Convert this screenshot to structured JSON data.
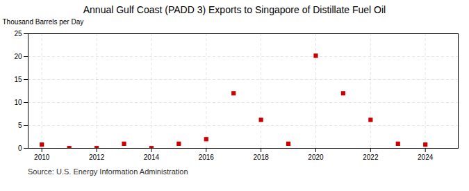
{
  "chart_data": {
    "type": "scatter",
    "title": "Annual Gulf Coast (PADD 3) Exports to Singapore of Distillate Fuel Oil",
    "ylabel": "Thousand Barrels per Day",
    "source": "Source: U.S. Energy Information Administration",
    "x": [
      2010,
      2011,
      2012,
      2013,
      2014,
      2015,
      2016,
      2017,
      2018,
      2019,
      2020,
      2021,
      2022,
      2023,
      2024
    ],
    "values": [
      0.8,
      0.05,
      0.05,
      1.0,
      0.05,
      1.0,
      2.0,
      12.0,
      6.2,
      1.0,
      20.2,
      12.0,
      6.2,
      1.0,
      0.8
    ],
    "color": "#cc0000",
    "marker": "square",
    "xlim": [
      2009.5,
      2025.2
    ],
    "ylim": [
      0,
      25
    ],
    "xticks": [
      2010,
      2012,
      2014,
      2016,
      2018,
      2020,
      2022,
      2024
    ],
    "yticks": [
      0,
      5,
      10,
      15,
      20,
      25
    ],
    "grid": true
  }
}
